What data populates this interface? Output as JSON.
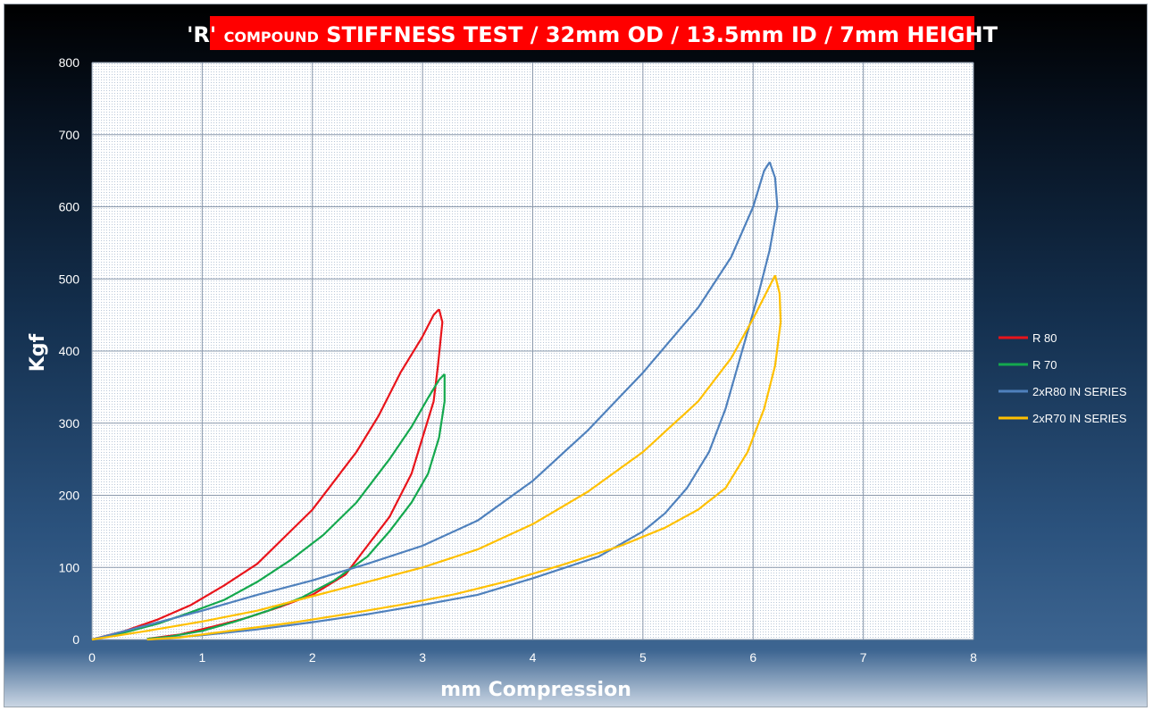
{
  "chart_data": {
    "type": "line",
    "title_parts": [
      "'R' ",
      "COMPOUND",
      " STIFFNESS TEST / 32mm OD / 13.5mm ID / 7mm HEIGHT"
    ],
    "xlabel": "mm Compression",
    "ylabel": "Kgf",
    "xlim": [
      0,
      8
    ],
    "ylim": [
      0,
      800
    ],
    "xticks": [
      0,
      1,
      2,
      3,
      4,
      5,
      6,
      7,
      8
    ],
    "yticks": [
      0,
      100,
      200,
      300,
      400,
      500,
      600,
      700,
      800
    ],
    "grid": true,
    "legend_position": "right",
    "series": [
      {
        "name": "R 80",
        "color": "#e8141b",
        "loading": [
          [
            0,
            0
          ],
          [
            0.3,
            12
          ],
          [
            0.6,
            28
          ],
          [
            0.9,
            48
          ],
          [
            1.2,
            75
          ],
          [
            1.5,
            105
          ],
          [
            1.8,
            150
          ],
          [
            2.0,
            180
          ],
          [
            2.2,
            220
          ],
          [
            2.4,
            260
          ],
          [
            2.6,
            310
          ],
          [
            2.8,
            370
          ],
          [
            3.0,
            420
          ],
          [
            3.1,
            450
          ],
          [
            3.15,
            458
          ]
        ],
        "unloading": [
          [
            3.15,
            458
          ],
          [
            3.18,
            440
          ],
          [
            3.14,
            380
          ],
          [
            3.1,
            330
          ],
          [
            3.0,
            280
          ],
          [
            2.9,
            230
          ],
          [
            2.7,
            170
          ],
          [
            2.5,
            130
          ],
          [
            2.3,
            90
          ],
          [
            2.0,
            62
          ],
          [
            1.7,
            45
          ],
          [
            1.4,
            30
          ],
          [
            1.1,
            18
          ],
          [
            0.8,
            7
          ],
          [
            0.5,
            1
          ]
        ]
      },
      {
        "name": "R 70",
        "color": "#14a84e",
        "loading": [
          [
            0,
            0
          ],
          [
            0.3,
            10
          ],
          [
            0.6,
            22
          ],
          [
            0.9,
            38
          ],
          [
            1.2,
            55
          ],
          [
            1.5,
            80
          ],
          [
            1.8,
            110
          ],
          [
            2.1,
            145
          ],
          [
            2.4,
            190
          ],
          [
            2.7,
            250
          ],
          [
            2.9,
            295
          ],
          [
            3.05,
            335
          ],
          [
            3.15,
            360
          ],
          [
            3.2,
            368
          ]
        ],
        "unloading": [
          [
            3.2,
            368
          ],
          [
            3.2,
            330
          ],
          [
            3.15,
            280
          ],
          [
            3.05,
            230
          ],
          [
            2.9,
            190
          ],
          [
            2.7,
            150
          ],
          [
            2.5,
            115
          ],
          [
            2.2,
            82
          ],
          [
            1.9,
            58
          ],
          [
            1.6,
            40
          ],
          [
            1.3,
            25
          ],
          [
            1.0,
            12
          ],
          [
            0.7,
            4
          ],
          [
            0.5,
            1
          ]
        ]
      },
      {
        "name": "2xR80 IN SERIES",
        "color": "#4f81bd",
        "loading": [
          [
            0,
            0
          ],
          [
            0.5,
            20
          ],
          [
            1.0,
            40
          ],
          [
            1.5,
            62
          ],
          [
            2.0,
            82
          ],
          [
            2.5,
            105
          ],
          [
            3.0,
            130
          ],
          [
            3.5,
            165
          ],
          [
            4.0,
            220
          ],
          [
            4.5,
            290
          ],
          [
            5.0,
            370
          ],
          [
            5.5,
            460
          ],
          [
            5.8,
            530
          ],
          [
            6.0,
            600
          ],
          [
            6.1,
            650
          ],
          [
            6.15,
            662
          ]
        ],
        "unloading": [
          [
            6.15,
            662
          ],
          [
            6.2,
            640
          ],
          [
            6.22,
            600
          ],
          [
            6.15,
            540
          ],
          [
            6.05,
            480
          ],
          [
            5.9,
            400
          ],
          [
            5.75,
            320
          ],
          [
            5.6,
            260
          ],
          [
            5.4,
            210
          ],
          [
            5.2,
            175
          ],
          [
            5.0,
            150
          ],
          [
            4.6,
            115
          ],
          [
            4.0,
            85
          ],
          [
            3.5,
            62
          ],
          [
            3.0,
            48
          ],
          [
            2.5,
            35
          ],
          [
            2.0,
            24
          ],
          [
            1.5,
            14
          ],
          [
            1.0,
            6
          ],
          [
            0.5,
            0
          ]
        ]
      },
      {
        "name": "2xR70 IN SERIES",
        "color": "#ffc000",
        "loading": [
          [
            0,
            0
          ],
          [
            0.5,
            12
          ],
          [
            1.0,
            25
          ],
          [
            1.5,
            40
          ],
          [
            2.0,
            60
          ],
          [
            2.5,
            80
          ],
          [
            3.0,
            100
          ],
          [
            3.5,
            125
          ],
          [
            4.0,
            160
          ],
          [
            4.5,
            205
          ],
          [
            5.0,
            260
          ],
          [
            5.5,
            330
          ],
          [
            5.8,
            390
          ],
          [
            6.0,
            445
          ],
          [
            6.15,
            490
          ],
          [
            6.2,
            505
          ]
        ],
        "unloading": [
          [
            6.2,
            505
          ],
          [
            6.24,
            480
          ],
          [
            6.25,
            440
          ],
          [
            6.2,
            380
          ],
          [
            6.1,
            320
          ],
          [
            5.95,
            260
          ],
          [
            5.75,
            210
          ],
          [
            5.5,
            180
          ],
          [
            5.2,
            155
          ],
          [
            4.8,
            130
          ],
          [
            4.3,
            105
          ],
          [
            3.8,
            82
          ],
          [
            3.3,
            63
          ],
          [
            2.8,
            48
          ],
          [
            2.3,
            35
          ],
          [
            1.8,
            23
          ],
          [
            1.3,
            13
          ],
          [
            0.8,
            3
          ],
          [
            0.5,
            0
          ]
        ]
      }
    ]
  }
}
